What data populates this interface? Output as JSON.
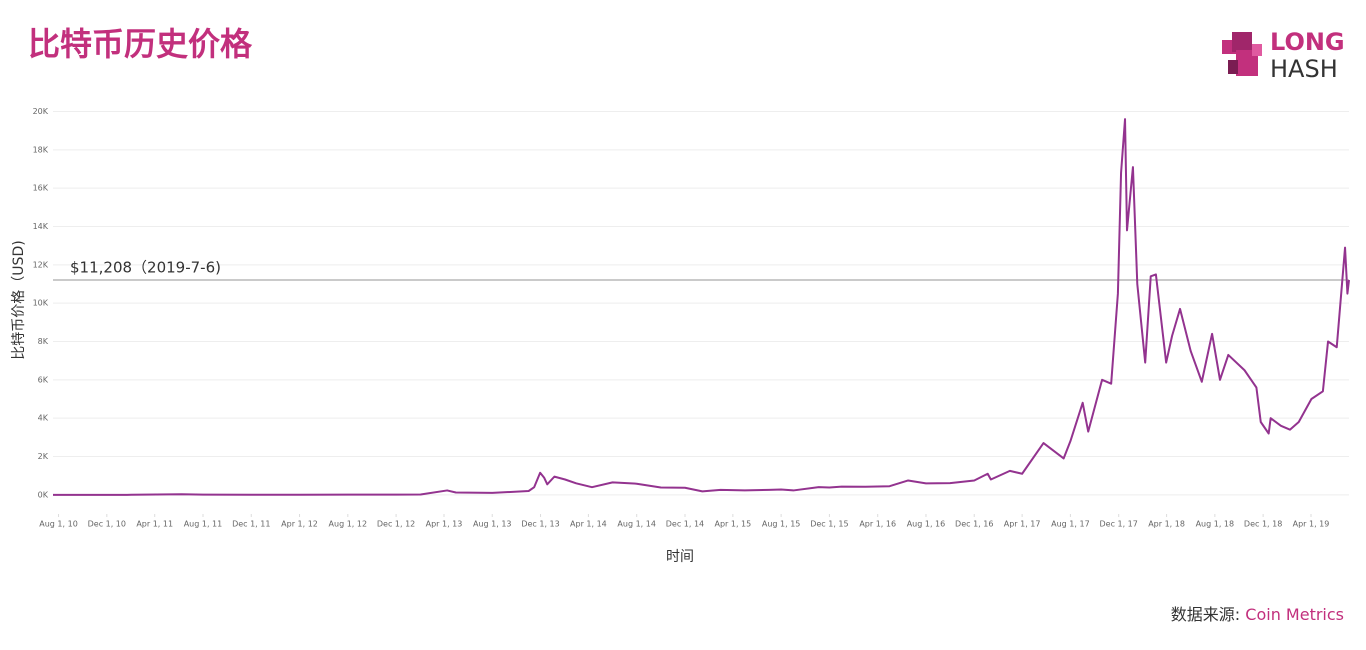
{
  "chart_data": {
    "type": "line",
    "title": "比特币历史价格",
    "y_label": "比特币价格（USD)",
    "x_label": "时间",
    "source_prefix": "数据来源:",
    "source": "Coin Metrics",
    "color": "#93338f",
    "grid": true,
    "reference_line": {
      "value": 11208,
      "label": "$11,208（2019-7-6)"
    },
    "xlim": [
      "2010-07-18",
      "2019-07-06"
    ],
    "ylim": [
      -1000,
      20600
    ],
    "yticks": [
      {
        "value": 0,
        "label": "0K"
      },
      {
        "value": 2000,
        "label": "2K"
      },
      {
        "value": 4000,
        "label": "4K"
      },
      {
        "value": 6000,
        "label": "6K"
      },
      {
        "value": 8000,
        "label": "8K"
      },
      {
        "value": 10000,
        "label": "10K"
      },
      {
        "value": 12000,
        "label": "12K"
      },
      {
        "value": 14000,
        "label": "14K"
      },
      {
        "value": 16000,
        "label": "16K"
      },
      {
        "value": 18000,
        "label": "18K"
      },
      {
        "value": 20000,
        "label": "20K"
      }
    ],
    "xticks": [
      {
        "value": "2010-08-01",
        "label": "Aug 1, 10"
      },
      {
        "value": "2010-12-01",
        "label": "Dec 1, 10"
      },
      {
        "value": "2011-04-01",
        "label": "Apr 1, 11"
      },
      {
        "value": "2011-08-01",
        "label": "Aug 1, 11"
      },
      {
        "value": "2011-12-01",
        "label": "Dec 1, 11"
      },
      {
        "value": "2012-04-01",
        "label": "Apr 1, 12"
      },
      {
        "value": "2012-08-01",
        "label": "Aug 1, 12"
      },
      {
        "value": "2012-12-01",
        "label": "Dec 1, 12"
      },
      {
        "value": "2013-04-01",
        "label": "Apr 1, 13"
      },
      {
        "value": "2013-08-01",
        "label": "Aug 1, 13"
      },
      {
        "value": "2013-12-01",
        "label": "Dec 1, 13"
      },
      {
        "value": "2014-04-01",
        "label": "Apr 1, 14"
      },
      {
        "value": "2014-08-01",
        "label": "Aug 1, 14"
      },
      {
        "value": "2014-12-01",
        "label": "Dec 1, 14"
      },
      {
        "value": "2015-04-01",
        "label": "Apr 1, 15"
      },
      {
        "value": "2015-08-01",
        "label": "Aug 1, 15"
      },
      {
        "value": "2015-12-01",
        "label": "Dec 1, 15"
      },
      {
        "value": "2016-04-01",
        "label": "Apr 1, 16"
      },
      {
        "value": "2016-08-01",
        "label": "Aug 1, 16"
      },
      {
        "value": "2016-12-01",
        "label": "Dec 1, 16"
      },
      {
        "value": "2017-04-01",
        "label": "Apr 1, 17"
      },
      {
        "value": "2017-08-01",
        "label": "Aug 1, 17"
      },
      {
        "value": "2017-12-01",
        "label": "Dec 1, 17"
      },
      {
        "value": "2018-04-01",
        "label": "Apr 1, 18"
      },
      {
        "value": "2018-08-01",
        "label": "Aug 1, 18"
      },
      {
        "value": "2018-12-01",
        "label": "Dec 1, 18"
      },
      {
        "value": "2019-04-01",
        "label": "Apr 1, 19"
      }
    ],
    "x": [
      "2010-07-18",
      "2010-12-01",
      "2011-02-01",
      "2011-06-08",
      "2011-08-01",
      "2011-12-01",
      "2012-04-01",
      "2012-08-01",
      "2012-12-01",
      "2013-02-01",
      "2013-04-09",
      "2013-05-01",
      "2013-08-01",
      "2013-11-01",
      "2013-11-15",
      "2013-11-30",
      "2013-12-10",
      "2013-12-18",
      "2014-01-05",
      "2014-02-01",
      "2014-03-01",
      "2014-04-10",
      "2014-06-01",
      "2014-08-01",
      "2014-10-01",
      "2014-12-01",
      "2015-01-14",
      "2015-03-01",
      "2015-05-01",
      "2015-07-01",
      "2015-08-01",
      "2015-09-01",
      "2015-11-04",
      "2015-12-01",
      "2016-01-01",
      "2016-03-01",
      "2016-05-01",
      "2016-06-17",
      "2016-08-01",
      "2016-10-01",
      "2016-12-01",
      "2017-01-04",
      "2017-01-12",
      "2017-03-01",
      "2017-04-01",
      "2017-05-25",
      "2017-07-15",
      "2017-08-01",
      "2017-09-01",
      "2017-09-15",
      "2017-10-20",
      "2017-11-12",
      "2017-11-29",
      "2017-12-07",
      "2017-12-17",
      "2017-12-22",
      "2018-01-06",
      "2018-01-17",
      "2018-02-06",
      "2018-02-20",
      "2018-03-05",
      "2018-03-31",
      "2018-04-15",
      "2018-05-05",
      "2018-06-01",
      "2018-06-29",
      "2018-07-25",
      "2018-08-14",
      "2018-09-04",
      "2018-10-15",
      "2018-11-14",
      "2018-11-25",
      "2018-12-15",
      "2018-12-20",
      "2019-01-15",
      "2019-02-07",
      "2019-03-01",
      "2019-04-02",
      "2019-05-01",
      "2019-05-14",
      "2019-06-05",
      "2019-06-26",
      "2019-07-02",
      "2019-07-06"
    ],
    "values": [
      0.07,
      0.2,
      1,
      30,
      10,
      3,
      5,
      10,
      13,
      20,
      230,
      120,
      100,
      200,
      400,
      1150,
      900,
      550,
      950,
      800,
      600,
      400,
      650,
      580,
      380,
      370,
      180,
      260,
      235,
      260,
      280,
      230,
      400,
      380,
      430,
      420,
      450,
      750,
      600,
      610,
      750,
      1100,
      800,
      1250,
      1100,
      2700,
      1900,
      2800,
      4800,
      3300,
      6000,
      5800,
      10500,
      16800,
      19600,
      13800,
      17100,
      11000,
      6900,
      11400,
      11500,
      6900,
      8300,
      9700,
      7500,
      5900,
      8400,
      6000,
      7300,
      6500,
      5600,
      3800,
      3200,
      4000,
      3600,
      3400,
      3800,
      5000,
      5400,
      8000,
      7700,
      12900,
      10500,
      11208
    ]
  },
  "logo": {
    "top": "LONG",
    "bottom": "HASH"
  }
}
